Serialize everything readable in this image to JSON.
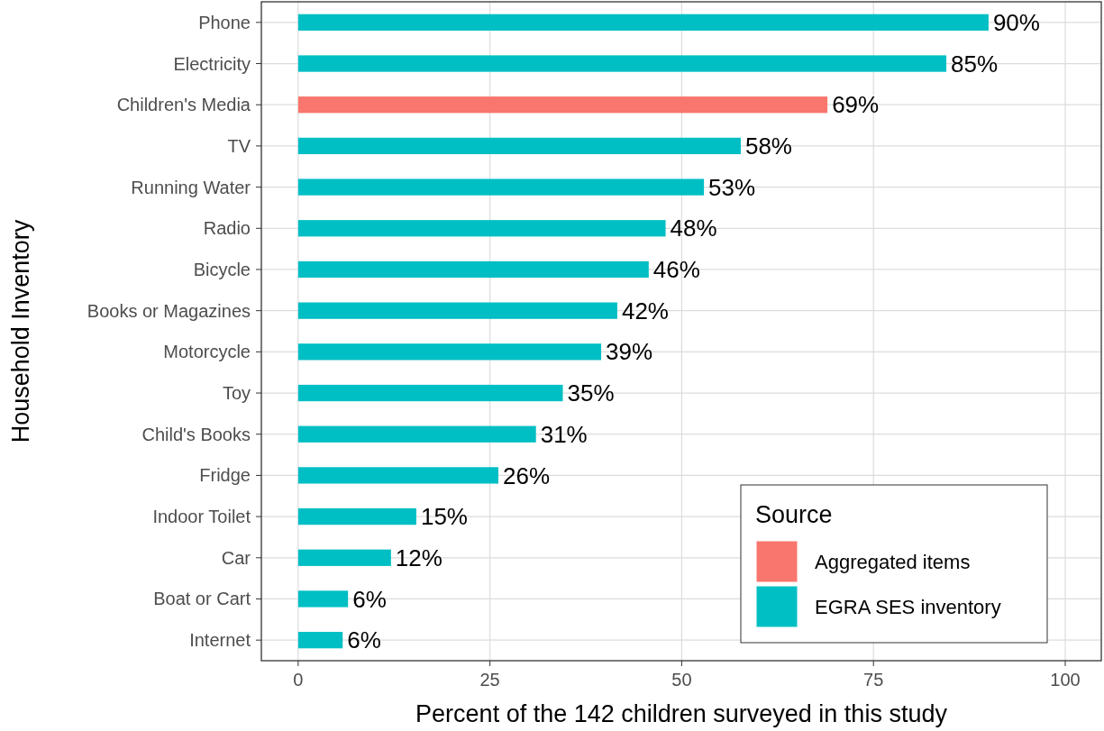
{
  "chart_data": {
    "type": "bar",
    "orientation": "horizontal",
    "xlabel": "Percent of the 142 children surveyed in this study",
    "ylabel": "Household Inventory",
    "legend_title": "Source",
    "legend": "bottom right",
    "grid": true,
    "categories": [
      "Phone",
      "Electricity",
      "Children's Media",
      "TV",
      "Running Water",
      "Radio",
      "Bicycle",
      "Books or Magazines",
      "Motorcycle",
      "Toy",
      "Child's Books",
      "Fridge",
      "Indoor Toilet",
      "Car",
      "Boat or Cart",
      "Internet"
    ],
    "series": [
      {
        "name": "Aggregated items",
        "color": "#f8766d",
        "values": [
          null,
          null,
          69.0,
          null,
          null,
          null,
          null,
          null,
          null,
          null,
          null,
          null,
          null,
          null,
          null,
          null
        ],
        "value_labels": [
          null,
          null,
          "69%",
          null,
          null,
          null,
          null,
          null,
          null,
          null,
          null,
          null,
          null,
          null,
          null,
          null
        ]
      },
      {
        "name": "EGRA SES inventory",
        "color": "#00bfc4",
        "values": [
          90.0,
          84.5,
          null,
          57.7,
          52.9,
          47.9,
          45.7,
          41.6,
          39.5,
          34.5,
          31.0,
          26.1,
          15.4,
          12.1,
          6.5,
          5.8
        ],
        "value_labels": [
          "90%",
          "85%",
          null,
          "58%",
          "53%",
          "48%",
          "46%",
          "42%",
          "39%",
          "35%",
          "31%",
          "26%",
          "15%",
          "12%",
          "6%",
          "6%"
        ]
      }
    ],
    "xlim": [
      -4.8,
      104.7
    ],
    "xticks": [
      0,
      25,
      50,
      75,
      100
    ]
  }
}
